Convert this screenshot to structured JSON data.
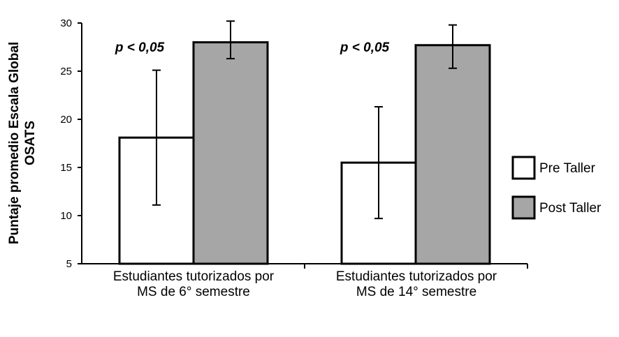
{
  "chart_data": {
    "type": "bar",
    "ylabel_lines": [
      "Puntaje promedio Escala Global",
      "OSATS"
    ],
    "ylim": [
      5,
      30
    ],
    "yticks": [
      5,
      10,
      15,
      20,
      25,
      30
    ],
    "categories": [
      [
        "Estudiantes tutorizados por",
        "MS de 6° semestre"
      ],
      [
        "Estudiantes tutorizados por",
        "MS de 14° semestre"
      ]
    ],
    "series": [
      {
        "name": "Pre Taller",
        "color": "#ffffff",
        "values": [
          18.1,
          15.5
        ],
        "err_low": [
          11.1,
          9.7
        ],
        "err_high": [
          25.1,
          21.3
        ]
      },
      {
        "name": "Post Taller",
        "color": "#a6a6a6",
        "values": [
          28.0,
          27.7
        ],
        "err_low": [
          26.3,
          25.3
        ],
        "err_high": [
          30.2,
          29.8
        ]
      }
    ],
    "annotations": [
      "p < 0,05",
      "p < 0,05"
    ],
    "legend_position": "right",
    "grid": false
  }
}
